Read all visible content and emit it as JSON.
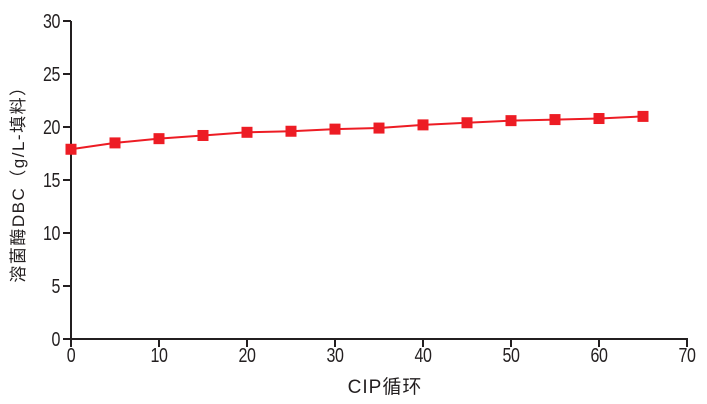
{
  "chart_data": {
    "type": "line",
    "title": "",
    "xlabel": "CIP循环",
    "ylabel": "溶菌酶DBC（g/L-填料）",
    "x": [
      0,
      5,
      10,
      15,
      20,
      25,
      30,
      35,
      40,
      45,
      50,
      55,
      60,
      65
    ],
    "series": [
      {
        "name": "溶菌酶DBC",
        "color": "#ED1C24",
        "marker": "square",
        "values": [
          17.9,
          18.5,
          18.9,
          19.2,
          19.5,
          19.6,
          19.8,
          19.9,
          20.2,
          20.4,
          20.6,
          20.7,
          20.8,
          21.0
        ]
      }
    ],
    "xlim": [
      0,
      70
    ],
    "ylim": [
      0,
      30
    ],
    "xticks": [
      0,
      10,
      20,
      30,
      40,
      50,
      60,
      70
    ],
    "yticks": [
      0,
      5,
      10,
      15,
      20,
      25,
      30
    ],
    "grid": false,
    "legend_position": "none",
    "axis_color": "#231F20",
    "background_color": "#FFFFFF"
  }
}
